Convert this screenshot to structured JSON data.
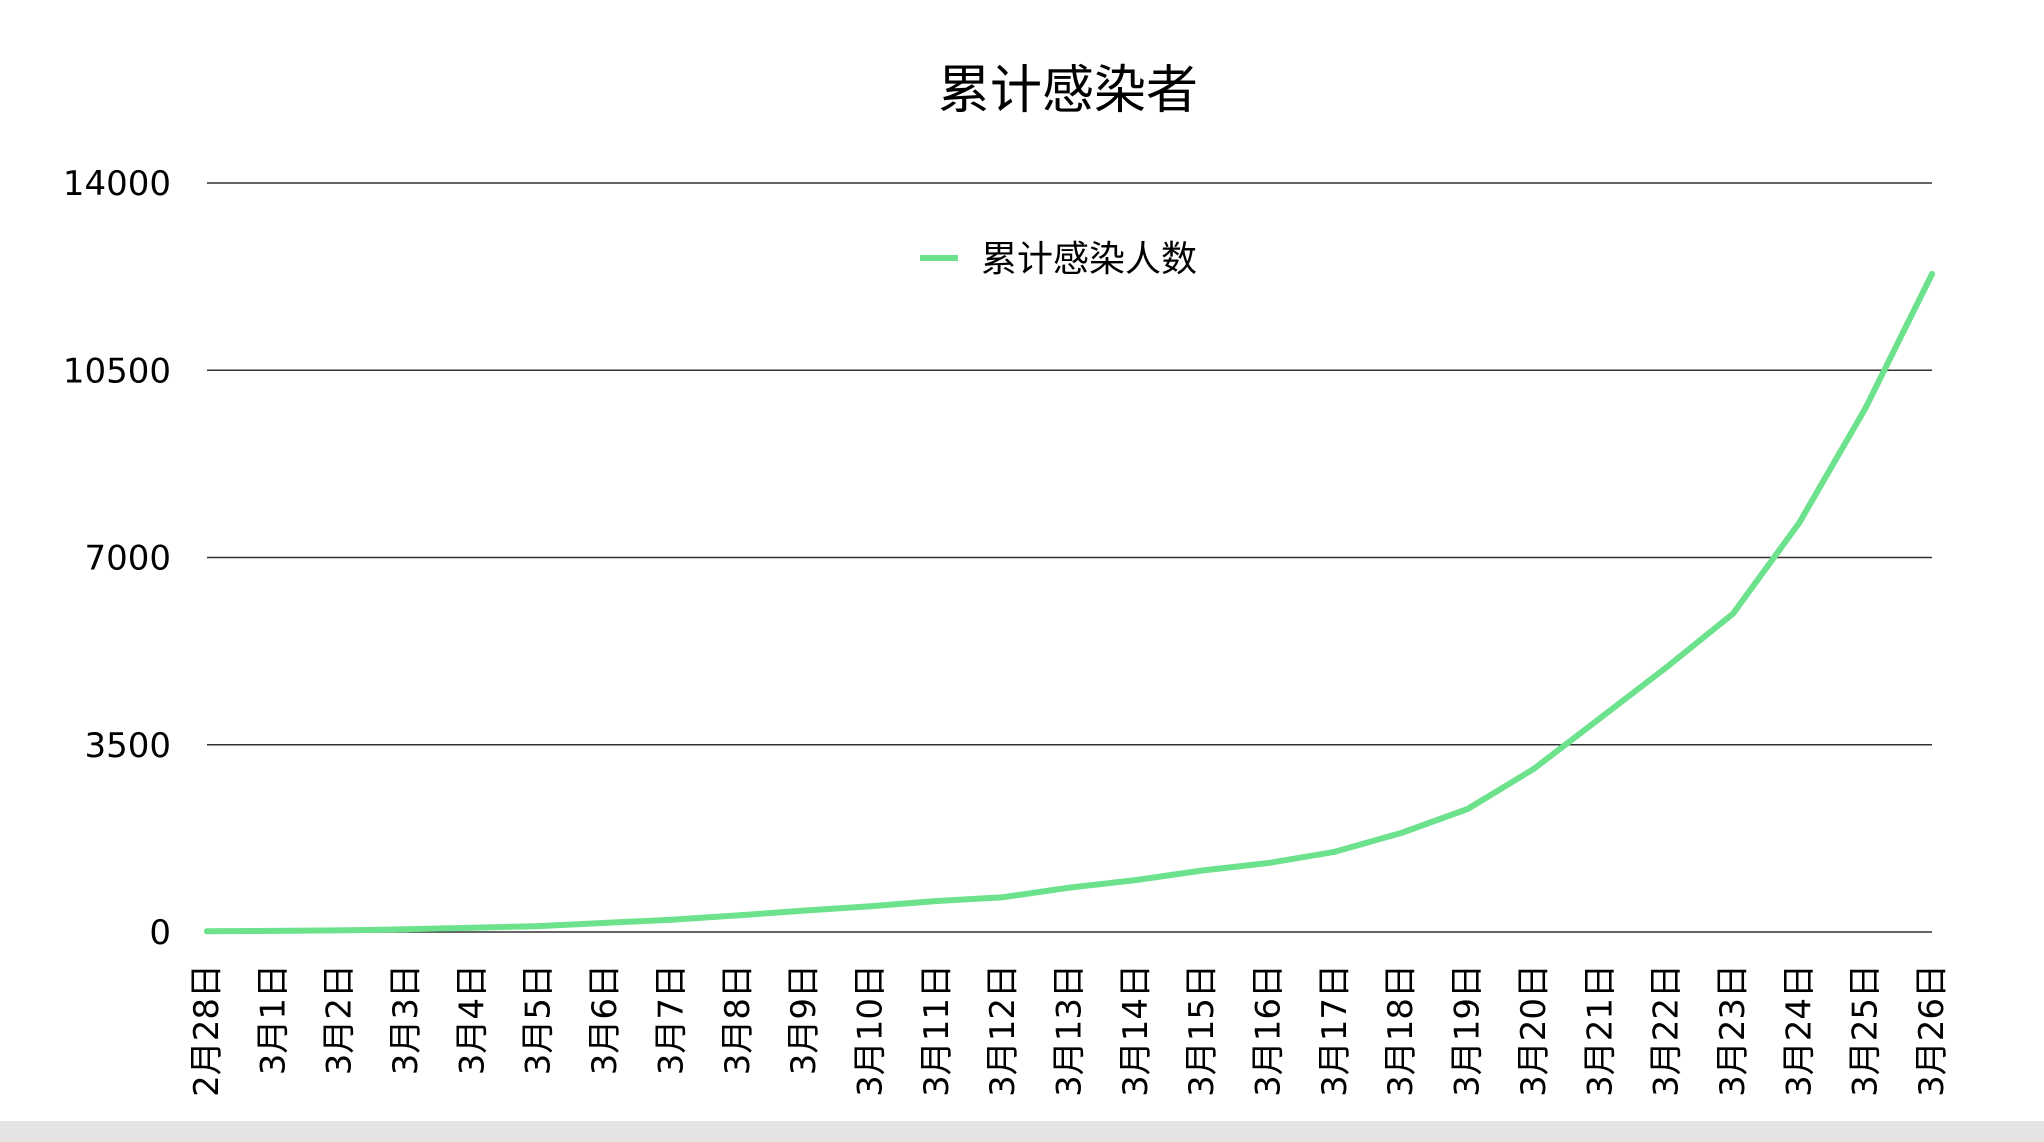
{
  "chart_data": {
    "type": "line",
    "title": "累计感染者",
    "xlabel": "",
    "ylabel": "",
    "categories": [
      "2月28日",
      "3月1日",
      "3月2日",
      "3月3日",
      "3月4日",
      "3月5日",
      "3月6日",
      "3月7日",
      "3月8日",
      "3月9日",
      "3月10日",
      "3月11日",
      "3月12日",
      "3月13日",
      "3月14日",
      "3月15日",
      "3月16日",
      "3月17日",
      "3月18日",
      "3月19日",
      "3月20日",
      "3月21日",
      "3月22日",
      "3月23日",
      "3月24日",
      "3月25日",
      "3月26日"
    ],
    "series": [
      {
        "name": "累计感染人数",
        "color": "#6ce28c",
        "values": [
          15,
          20,
          30,
          50,
          80,
          110,
          170,
          230,
          310,
          400,
          480,
          580,
          650,
          830,
          970,
          1150,
          1290,
          1500,
          1850,
          2300,
          3050,
          4000,
          4950,
          5950,
          7650,
          9800,
          12300
        ]
      }
    ],
    "ylim": [
      0,
      14000
    ],
    "yticks": [
      0,
      3500,
      7000,
      10500,
      14000
    ],
    "grid": true,
    "legend_position": "top-center"
  }
}
